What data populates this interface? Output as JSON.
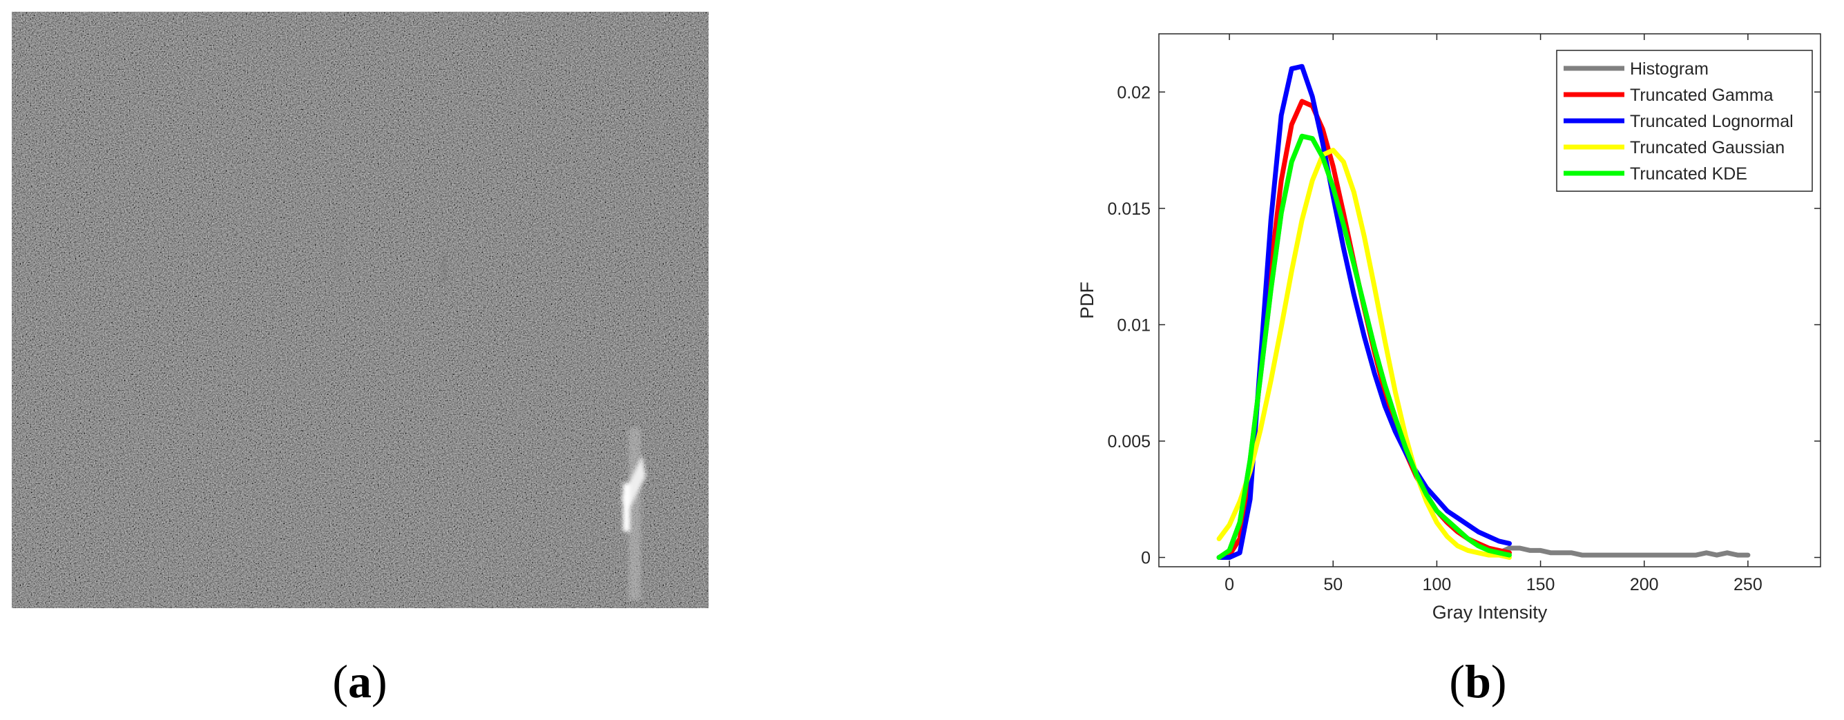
{
  "panel_labels": {
    "a_open": "(",
    "a": "a",
    "a_close": ")",
    "b_open": "(",
    "b": "b",
    "b_close": ")"
  },
  "chart_data": {
    "type": "line",
    "xlabel": "Gray Intensity",
    "ylabel": "PDF",
    "xlim": [
      -34,
      285
    ],
    "ylim": [
      -0.0004,
      0.0225
    ],
    "xticks": [
      0,
      50,
      100,
      150,
      200,
      250
    ],
    "yticks": [
      0,
      0.005,
      0.01,
      0.015,
      0.02
    ],
    "legend": "upper right",
    "x": [
      -5,
      0,
      5,
      10,
      15,
      20,
      25,
      30,
      35,
      40,
      45,
      50,
      55,
      60,
      65,
      70,
      75,
      80,
      85,
      90,
      95,
      100,
      105,
      110,
      115,
      120,
      125,
      130,
      135,
      140,
      145,
      150,
      155,
      160,
      165,
      170,
      175,
      180,
      185,
      190,
      195,
      200,
      205,
      210,
      215,
      220,
      225,
      230,
      235,
      240,
      245,
      250
    ],
    "series": [
      {
        "name": "Histogram",
        "color": "#808080",
        "values": [
          null,
          0.0003,
          0.0015,
          0.0042,
          0.0078,
          0.0115,
          0.0148,
          0.017,
          0.0181,
          0.018,
          0.0172,
          0.0159,
          0.0143,
          0.0126,
          0.0108,
          0.009,
          0.0074,
          0.006,
          0.0047,
          0.0036,
          0.0027,
          0.002,
          0.0016,
          0.0012,
          0.0008,
          0.0005,
          0.0003,
          0.0002,
          0.0004,
          0.0004,
          0.0003,
          0.0003,
          0.0002,
          0.0002,
          0.0002,
          0.0001,
          0.0001,
          0.0001,
          0.0001,
          0.0001,
          0.0001,
          0.0001,
          0.0001,
          0.0001,
          0.0001,
          0.0001,
          0.0001,
          0.0002,
          0.0001,
          0.0002,
          0.0001,
          0.0001
        ]
      },
      {
        "name": "Truncated Gamma",
        "color": "#ff0000",
        "values": [
          0,
          0.0001,
          0.0008,
          0.0035,
          0.008,
          0.0125,
          0.0162,
          0.0186,
          0.0196,
          0.0194,
          0.0184,
          0.0168,
          0.0148,
          0.0127,
          0.0107,
          0.0088,
          0.0071,
          0.0057,
          0.0045,
          0.0035,
          0.0027,
          0.002,
          0.0015,
          0.0011,
          0.0008,
          0.0006,
          0.0004,
          0.0003,
          0.0002,
          null,
          null,
          null,
          null,
          null,
          null,
          null,
          null,
          null,
          null,
          null,
          null,
          null,
          null,
          null,
          null,
          null,
          null,
          null,
          null,
          null,
          null,
          null
        ]
      },
      {
        "name": "Truncated Lognormal",
        "color": "#0000ff",
        "values": [
          0,
          0,
          0.0002,
          0.0025,
          0.0085,
          0.0145,
          0.019,
          0.021,
          0.0211,
          0.0198,
          0.0178,
          0.0155,
          0.0133,
          0.0113,
          0.0095,
          0.0079,
          0.0065,
          0.0054,
          0.0045,
          0.0037,
          0.003,
          0.0025,
          0.002,
          0.0017,
          0.0014,
          0.0011,
          0.0009,
          0.0007,
          0.0006,
          null,
          null,
          null,
          null,
          null,
          null,
          null,
          null,
          null,
          null,
          null,
          null,
          null,
          null,
          null,
          null,
          null,
          null,
          null,
          null,
          null,
          null,
          null
        ]
      },
      {
        "name": "Truncated Gaussian",
        "color": "#ffff00",
        "values": [
          0.0008,
          0.0014,
          0.0024,
          0.0037,
          0.0055,
          0.0076,
          0.0099,
          0.0123,
          0.0145,
          0.0162,
          0.0173,
          0.0175,
          0.017,
          0.0157,
          0.0138,
          0.0116,
          0.0093,
          0.0071,
          0.0052,
          0.0036,
          0.0024,
          0.0015,
          0.0009,
          0.0005,
          0.0003,
          0.0002,
          0.0001,
          0.0001,
          0,
          null,
          null,
          null,
          null,
          null,
          null,
          null,
          null,
          null,
          null,
          null,
          null,
          null,
          null,
          null,
          null,
          null,
          null,
          null,
          null,
          null,
          null,
          null
        ]
      },
      {
        "name": "Truncated KDE",
        "color": "#00ff00",
        "values": [
          0,
          0.0003,
          0.0015,
          0.0042,
          0.0078,
          0.0115,
          0.0148,
          0.017,
          0.0181,
          0.018,
          0.0172,
          0.0159,
          0.0143,
          0.0126,
          0.0108,
          0.009,
          0.0074,
          0.006,
          0.0047,
          0.0036,
          0.0027,
          0.002,
          0.0016,
          0.0012,
          0.0008,
          0.0005,
          0.0003,
          0.0002,
          0.0001,
          null,
          null,
          null,
          null,
          null,
          null,
          null,
          null,
          null,
          null,
          null,
          null,
          null,
          null,
          null,
          null,
          null,
          null,
          null,
          null,
          null,
          null,
          null
        ]
      }
    ]
  }
}
